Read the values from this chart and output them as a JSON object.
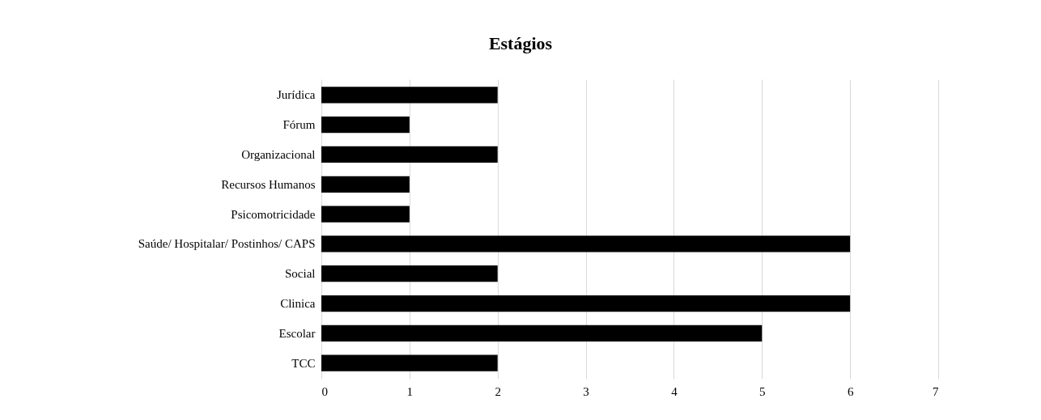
{
  "chart_data": {
    "type": "bar",
    "orientation": "horizontal",
    "title": "Estágios",
    "categories": [
      "Jurídica",
      "Fórum",
      "Organizacional",
      "Recursos Humanos",
      "Psicomotricidade",
      "Saúde/ Hospitalar/ Postinhos/ CAPS",
      "Social",
      "Clinica",
      "Escolar",
      "TCC"
    ],
    "values": [
      2,
      1,
      2,
      1,
      1,
      6,
      2,
      6,
      5,
      2
    ],
    "color": "#000000",
    "xlim": [
      0,
      7
    ],
    "xticks": [
      0,
      1,
      2,
      3,
      4,
      5,
      6,
      7
    ],
    "grid": "x"
  }
}
